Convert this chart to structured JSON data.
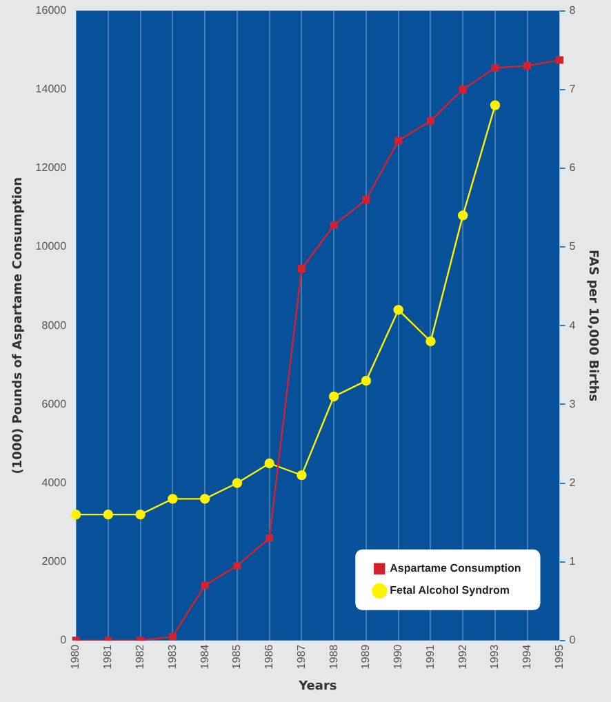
{
  "chart_data": {
    "type": "line",
    "xlabel": "Years",
    "ylabel": "(1000) Pounds of Aspartame Consumption",
    "y2label": "FAS per 10,000 Births",
    "categories": [
      "1980",
      "1981",
      "1982",
      "1983",
      "1984",
      "1985",
      "1986",
      "1987",
      "1988",
      "1989",
      "1990",
      "1991",
      "1992",
      "1993",
      "1994",
      "1995"
    ],
    "series": [
      {
        "name": "Aspartame Consumption",
        "color": "#d42130",
        "marker": "square",
        "values": [
          0,
          0,
          0,
          100,
          1400,
          1900,
          2600,
          9450,
          10550,
          11200,
          12700,
          13200,
          14000,
          14550,
          14600,
          14750
        ]
      },
      {
        "name": "Fetal Alcohol Syndrom",
        "color": "#fff200",
        "marker": "circle",
        "axis": "y2",
        "values": [
          1.6,
          1.6,
          1.6,
          1.8,
          1.8,
          2.0,
          2.25,
          2.1,
          3.1,
          3.3,
          4.2,
          3.8,
          5.4,
          6.8,
          null,
          null
        ]
      }
    ],
    "ylim": [
      0,
      16000
    ],
    "yticks": [
      0,
      2000,
      4000,
      6000,
      8000,
      10000,
      12000,
      14000,
      16000
    ],
    "y2lim": [
      0,
      8
    ],
    "y2ticks": [
      0,
      1,
      2,
      3,
      4,
      5,
      6,
      7,
      8
    ],
    "grid": "x",
    "legend": "bottom right"
  }
}
